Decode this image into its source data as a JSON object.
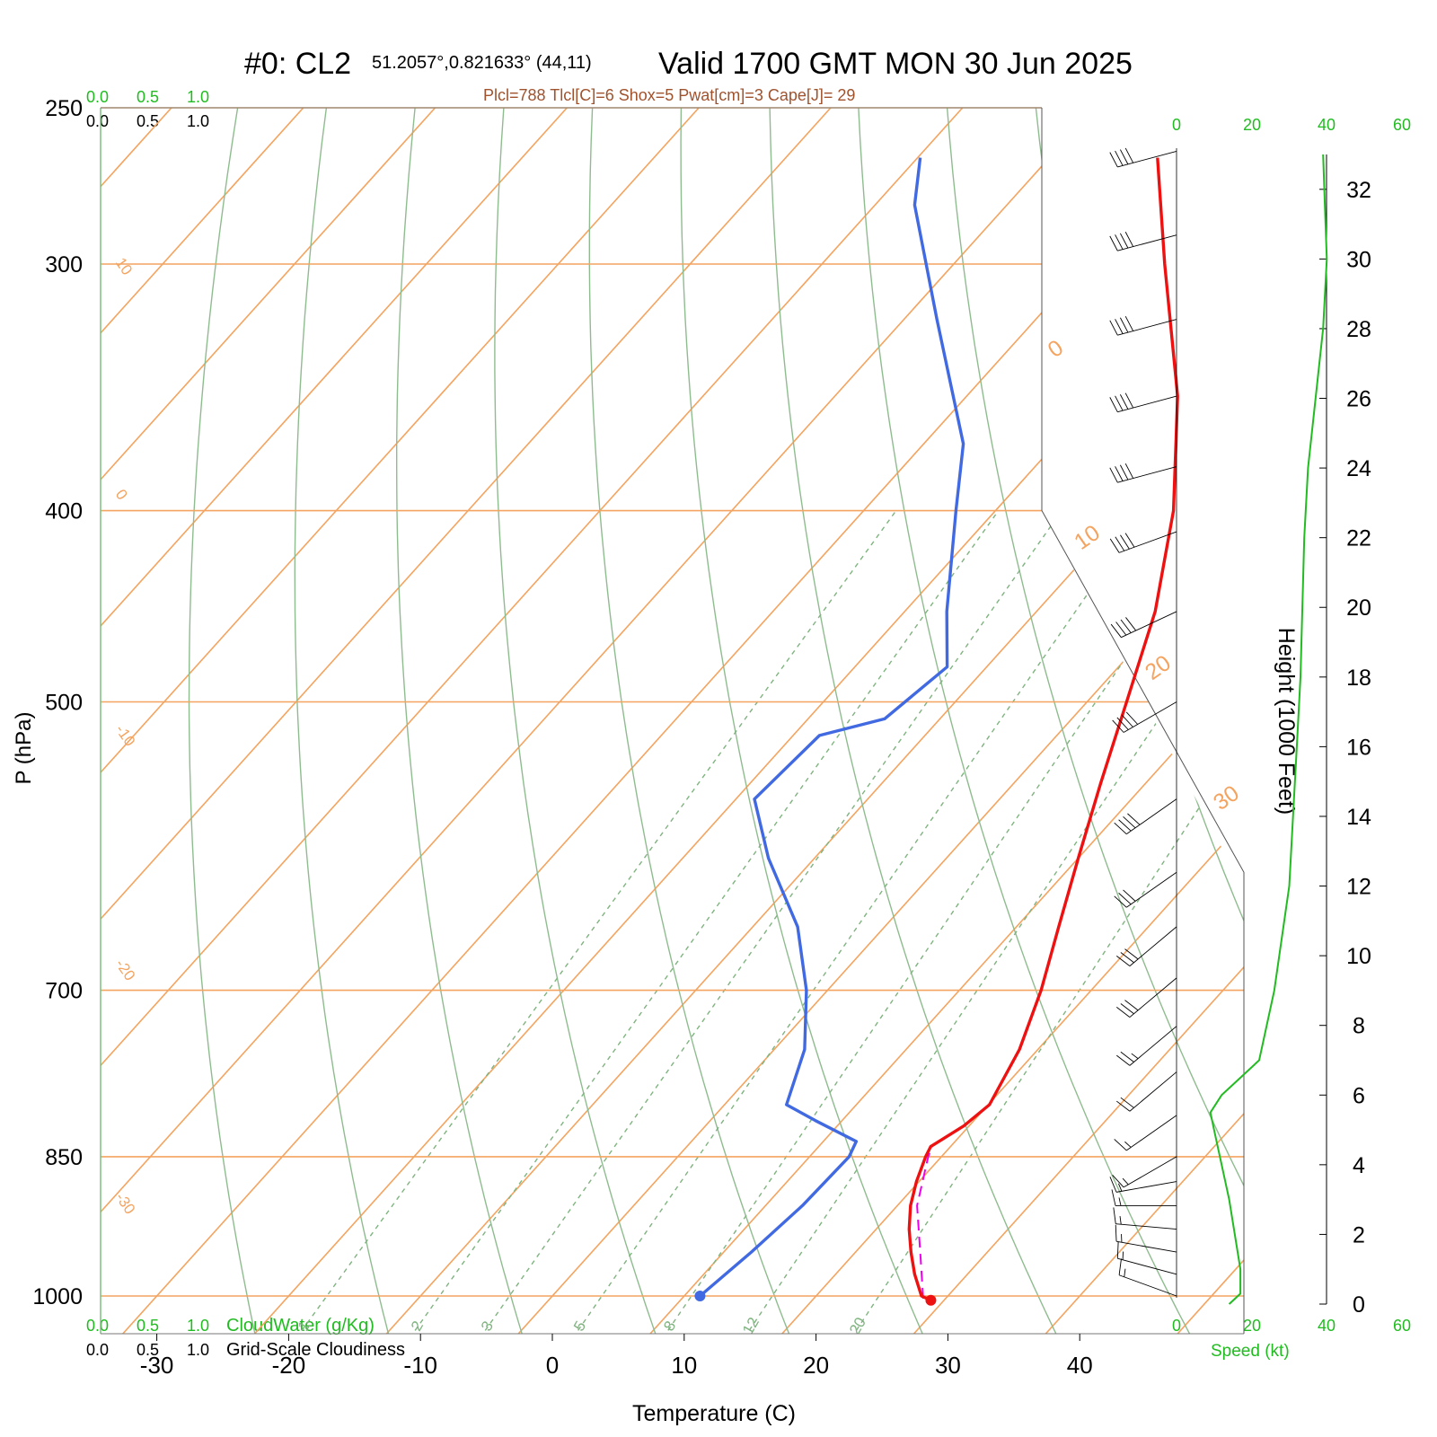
{
  "header": {
    "main_title": "#0: CL2",
    "location": "51.2057°,0.821633° (44,11)",
    "valid": "Valid 1700 GMT MON 30 Jun 2025",
    "indices": "Plcl=788 Tlcl[C]=6 Shox=5 Pwat[cm]=3 Cape[J]= 29"
  },
  "cloud_scales": {
    "top_green": [
      "0.0",
      "0.5",
      "1.0"
    ],
    "top_black": [
      "0.0",
      "0.5",
      "1.0"
    ],
    "bottom_green": [
      "0.0",
      "0.5",
      "1.0"
    ],
    "bottom_black": [
      "0.0",
      "0.5",
      "1.0"
    ],
    "cloud_water_label": "CloudWater (g/Kg)",
    "cloudiness_label": "Grid-Scale Cloudiness"
  },
  "speed_axis": {
    "ticks": [
      "0",
      "20",
      "40",
      "60"
    ],
    "label": "Speed (kt)"
  },
  "colors": {
    "temperature": "#ee1111",
    "dewpoint": "#4169e1",
    "parcel": "#ee00ee",
    "isotherm": "#f4a460",
    "dry_adiabat": "#8fbc8f",
    "mixing_ratio": "#7fb37f",
    "speed_profile": "#22bb22",
    "indices_text": "#a0522d"
  },
  "chart_data": {
    "type": "skew-t",
    "xlabel": "Temperature (C)",
    "ylabel": "P (hPa)",
    "height_label": "Height (1000 Feet)",
    "x_ticks": [
      -30,
      -20,
      -10,
      0,
      10,
      20,
      30,
      40
    ],
    "pressure_levels": [
      250,
      300,
      400,
      500,
      700,
      850,
      1000
    ],
    "isotherm_labels": [
      "10",
      "0",
      "-10",
      "-20",
      "-30",
      "0",
      "10",
      "20",
      "30"
    ],
    "mixing_ratio_labels": [
      "1",
      "2",
      "3",
      "5",
      "8",
      "12",
      "20"
    ],
    "height_ticks": [
      0,
      2,
      4,
      6,
      8,
      10,
      12,
      14,
      16,
      18,
      20,
      22,
      24,
      26,
      28,
      30,
      32
    ],
    "temperature_profile": [
      {
        "p": 1005,
        "t": 29.0
      },
      {
        "p": 1000,
        "t": 28.0
      },
      {
        "p": 975,
        "t": 26.0
      },
      {
        "p": 950,
        "t": 24.2
      },
      {
        "p": 925,
        "t": 22.5
      },
      {
        "p": 900,
        "t": 21.0
      },
      {
        "p": 875,
        "t": 19.8
      },
      {
        "p": 850,
        "t": 18.8
      },
      {
        "p": 840,
        "t": 18.5
      },
      {
        "p": 820,
        "t": 19.6
      },
      {
        "p": 800,
        "t": 20.1
      },
      {
        "p": 750,
        "t": 18.6
      },
      {
        "p": 700,
        "t": 16.2
      },
      {
        "p": 650,
        "t": 13.2
      },
      {
        "p": 600,
        "t": 10.0
      },
      {
        "p": 550,
        "t": 6.6
      },
      {
        "p": 500,
        "t": 3.0
      },
      {
        "p": 450,
        "t": -1.0
      },
      {
        "p": 400,
        "t": -6.5
      },
      {
        "p": 350,
        "t": -14.0
      },
      {
        "p": 300,
        "t": -24.0
      },
      {
        "p": 265,
        "t": -31.8
      }
    ],
    "dewpoint_profile": [
      {
        "p": 1000,
        "t": 11.2
      },
      {
        "p": 950,
        "t": 12.1
      },
      {
        "p": 900,
        "t": 12.8
      },
      {
        "p": 850,
        "t": 13.0
      },
      {
        "p": 835,
        "t": 12.5
      },
      {
        "p": 815,
        "t": 8.0
      },
      {
        "p": 800,
        "t": 4.7
      },
      {
        "p": 750,
        "t": 2.3
      },
      {
        "p": 700,
        "t": -1.6
      },
      {
        "p": 650,
        "t": -6.6
      },
      {
        "p": 600,
        "t": -13.5
      },
      {
        "p": 560,
        "t": -18.6
      },
      {
        "p": 520,
        "t": -18.0
      },
      {
        "p": 510,
        "t": -14.2
      },
      {
        "p": 480,
        "t": -13.0
      },
      {
        "p": 450,
        "t": -16.8
      },
      {
        "p": 400,
        "t": -23.0
      },
      {
        "p": 370,
        "t": -27.0
      },
      {
        "p": 320,
        "t": -37.5
      },
      {
        "p": 280,
        "t": -47.0
      },
      {
        "p": 265,
        "t": -49.8
      }
    ],
    "parcel_path": [
      {
        "p": 1003,
        "t": 28.3
      },
      {
        "p": 950,
        "t": 24.9
      },
      {
        "p": 900,
        "t": 21.5
      },
      {
        "p": 850,
        "t": 19.0
      },
      {
        "p": 840,
        "t": 18.6
      }
    ],
    "wind_speed_profile_kt": [
      {
        "h": 0,
        "s": 14
      },
      {
        "h": 0.3,
        "s": 17
      },
      {
        "h": 1,
        "s": 17
      },
      {
        "h": 3,
        "s": 14
      },
      {
        "h": 5,
        "s": 10
      },
      {
        "h": 5.5,
        "s": 9
      },
      {
        "h": 6,
        "s": 12
      },
      {
        "h": 6.3,
        "s": 15
      },
      {
        "h": 7,
        "s": 22
      },
      {
        "h": 9,
        "s": 26
      },
      {
        "h": 12,
        "s": 30
      },
      {
        "h": 14,
        "s": 31
      },
      {
        "h": 16,
        "s": 32
      },
      {
        "h": 18,
        "s": 33
      },
      {
        "h": 20,
        "s": 33.5
      },
      {
        "h": 22,
        "s": 34
      },
      {
        "h": 24,
        "s": 35
      },
      {
        "h": 26,
        "s": 37
      },
      {
        "h": 28,
        "s": 39
      },
      {
        "h": 30,
        "s": 40
      },
      {
        "h": 31.5,
        "s": 39.5
      },
      {
        "h": 33,
        "s": 39
      }
    ],
    "wind_barbs": [
      {
        "p": 263,
        "dir": 255,
        "spd": 40
      },
      {
        "p": 290,
        "dir": 255,
        "spd": 40
      },
      {
        "p": 320,
        "dir": 255,
        "spd": 40
      },
      {
        "p": 350,
        "dir": 255,
        "spd": 40
      },
      {
        "p": 380,
        "dir": 255,
        "spd": 40
      },
      {
        "p": 410,
        "dir": 250,
        "spd": 40
      },
      {
        "p": 450,
        "dir": 245,
        "spd": 40
      },
      {
        "p": 500,
        "dir": 240,
        "spd": 40
      },
      {
        "p": 560,
        "dir": 235,
        "spd": 40
      },
      {
        "p": 610,
        "dir": 235,
        "spd": 30
      },
      {
        "p": 650,
        "dir": 230,
        "spd": 30
      },
      {
        "p": 690,
        "dir": 230,
        "spd": 30
      },
      {
        "p": 730,
        "dir": 230,
        "spd": 25
      },
      {
        "p": 770,
        "dir": 230,
        "spd": 20
      },
      {
        "p": 810,
        "dir": 235,
        "spd": 15
      },
      {
        "p": 850,
        "dir": 240,
        "spd": 15
      },
      {
        "p": 875,
        "dir": 260,
        "spd": 15
      },
      {
        "p": 900,
        "dir": 270,
        "spd": 15
      },
      {
        "p": 925,
        "dir": 275,
        "spd": 15
      },
      {
        "p": 950,
        "dir": 280,
        "spd": 15
      },
      {
        "p": 975,
        "dir": 285,
        "spd": 15
      },
      {
        "p": 1000,
        "dir": 290,
        "spd": 15
      }
    ]
  }
}
